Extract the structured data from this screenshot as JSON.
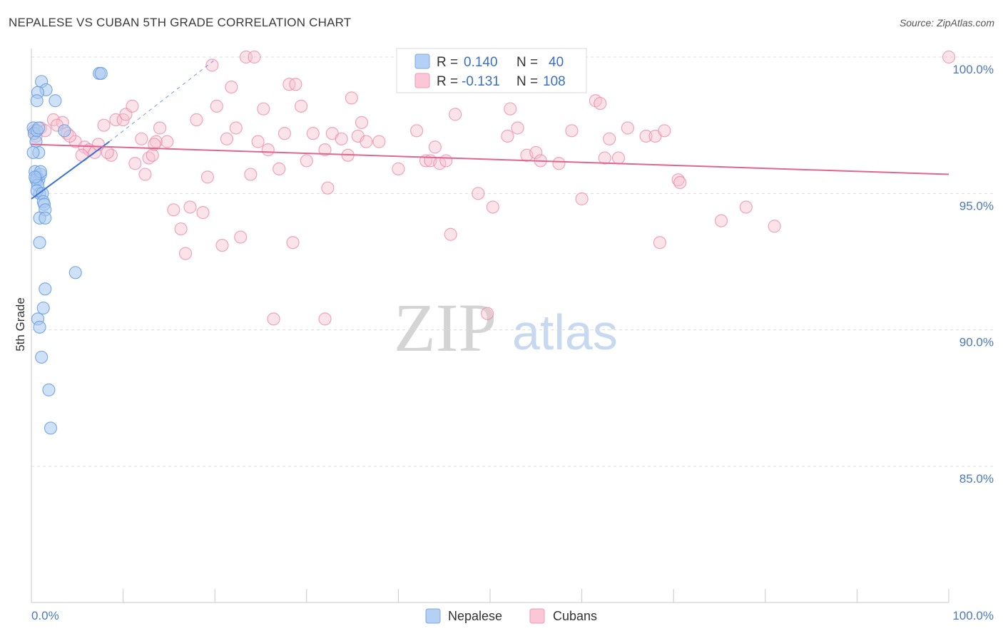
{
  "title": "NEPALESE VS CUBAN 5TH GRADE CORRELATION CHART",
  "source": "Source: ZipAtlas.com",
  "watermark": {
    "zip": "ZIP",
    "atlas": "atlas"
  },
  "colors": {
    "blue": "#6b9fe0",
    "blue_fill": "#a8c8f0",
    "blue_line": "#3a72d4",
    "pink": "#e98aa8",
    "pink_fill": "#f6c0d0",
    "pink_line": "#e0658f",
    "grid": "#dcdcdc",
    "axis_text": "#4a78c2"
  },
  "legend": {
    "rows": [
      {
        "r_label": "R =",
        "r_value": "0.140",
        "n_label": "N =",
        "n_value": "40"
      },
      {
        "r_label": "R =",
        "r_value": "-0.131",
        "n_label": "N =",
        "n_value": "108"
      }
    ]
  },
  "chart_data": {
    "type": "scatter",
    "title": "NEPALESE VS CUBAN 5TH GRADE CORRELATION CHART",
    "xlabel": "",
    "ylabel": "5th Grade",
    "xlim": [
      0,
      100
    ],
    "ylim": [
      80.5,
      100.9
    ],
    "x_tick_labels": [
      "0.0%",
      "100.0%"
    ],
    "y_ticks": [
      85,
      90,
      95,
      100
    ],
    "y_tick_labels": [
      "85.0%",
      "90.0%",
      "95.0%",
      "100.0%"
    ],
    "series": [
      {
        "name": "Nepalese",
        "r": 0.14,
        "n": 40,
        "trend": {
          "x0": 0,
          "y0": 94.8,
          "x1": 8.5,
          "y1": 96.9,
          "dash_to": [
            20,
            99.9
          ]
        },
        "points": [
          [
            0.2,
            97.4
          ],
          [
            0.3,
            97.2
          ],
          [
            0.5,
            96.9
          ],
          [
            0.6,
            97.3
          ],
          [
            0.8,
            97.4
          ],
          [
            0.4,
            95.8
          ],
          [
            0.6,
            95.6
          ],
          [
            0.8,
            95.5
          ],
          [
            1.0,
            95.7
          ],
          [
            0.5,
            95.5
          ],
          [
            0.7,
            95.3
          ],
          [
            0.9,
            95.0
          ],
          [
            0.6,
            95.1
          ],
          [
            1.2,
            95.0
          ],
          [
            1.3,
            94.7
          ],
          [
            1.4,
            94.6
          ],
          [
            1.5,
            94.4
          ],
          [
            0.9,
            94.1
          ],
          [
            1.5,
            94.1
          ],
          [
            0.9,
            93.2
          ],
          [
            1.1,
            99.1
          ],
          [
            1.6,
            98.8
          ],
          [
            0.7,
            98.7
          ],
          [
            0.6,
            98.4
          ],
          [
            2.6,
            98.4
          ],
          [
            3.6,
            97.3
          ],
          [
            0.8,
            96.5
          ],
          [
            0.2,
            96.5
          ],
          [
            7.4,
            99.4
          ],
          [
            7.6,
            99.4
          ],
          [
            4.8,
            92.1
          ],
          [
            1.5,
            91.5
          ],
          [
            1.3,
            90.8
          ],
          [
            0.7,
            90.4
          ],
          [
            0.9,
            90.1
          ],
          [
            1.1,
            89.0
          ],
          [
            1.9,
            87.8
          ],
          [
            2.1,
            86.4
          ],
          [
            1.0,
            95.8
          ],
          [
            0.4,
            95.6
          ]
        ]
      },
      {
        "name": "Cubans",
        "r": -0.131,
        "n": 108,
        "trend": {
          "x0": 0,
          "y0": 96.8,
          "x1": 100,
          "y1": 95.7
        },
        "points": [
          [
            0.3,
            97.3
          ],
          [
            0.5,
            97.1
          ],
          [
            1.0,
            97.4
          ],
          [
            1.5,
            97.3
          ],
          [
            2.4,
            97.7
          ],
          [
            3.4,
            97.6
          ],
          [
            2.8,
            97.5
          ],
          [
            3.9,
            97.2
          ],
          [
            4.8,
            96.9
          ],
          [
            5.8,
            96.7
          ],
          [
            6.3,
            96.6
          ],
          [
            5.5,
            96.4
          ],
          [
            6.9,
            96.5
          ],
          [
            7.3,
            96.8
          ],
          [
            7.9,
            97.5
          ],
          [
            8.7,
            96.4
          ],
          [
            9.2,
            97.7
          ],
          [
            10.0,
            97.7
          ],
          [
            10.3,
            97.9
          ],
          [
            11.0,
            98.2
          ],
          [
            11.3,
            96.1
          ],
          [
            12.0,
            97.0
          ],
          [
            12.4,
            95.7
          ],
          [
            12.8,
            96.3
          ],
          [
            13.2,
            96.4
          ],
          [
            13.6,
            96.9
          ],
          [
            14.0,
            97.4
          ],
          [
            14.8,
            96.9
          ],
          [
            15.5,
            94.4
          ],
          [
            16.3,
            93.7
          ],
          [
            16.8,
            92.8
          ],
          [
            17.3,
            94.5
          ],
          [
            18.0,
            97.7
          ],
          [
            18.7,
            94.3
          ],
          [
            19.2,
            95.6
          ],
          [
            19.7,
            99.7
          ],
          [
            20.2,
            98.2
          ],
          [
            20.8,
            93.1
          ],
          [
            21.3,
            97.0
          ],
          [
            21.8,
            98.9
          ],
          [
            22.3,
            97.4
          ],
          [
            22.8,
            93.4
          ],
          [
            23.4,
            100.0
          ],
          [
            23.9,
            95.7
          ],
          [
            24.3,
            100.0
          ],
          [
            24.7,
            96.9
          ],
          [
            25.3,
            98.1
          ],
          [
            25.8,
            96.6
          ],
          [
            26.4,
            90.4
          ],
          [
            27.0,
            95.9
          ],
          [
            27.6,
            97.2
          ],
          [
            28.1,
            99.0
          ],
          [
            28.5,
            93.2
          ],
          [
            28.8,
            99.0
          ],
          [
            29.4,
            98.2
          ],
          [
            30.0,
            96.2
          ],
          [
            30.7,
            97.2
          ],
          [
            32.0,
            96.6
          ],
          [
            32.3,
            95.2
          ],
          [
            32.8,
            97.2
          ],
          [
            33.8,
            97.0
          ],
          [
            34.5,
            96.4
          ],
          [
            34.9,
            98.5
          ],
          [
            35.6,
            97.1
          ],
          [
            36.0,
            97.6
          ],
          [
            36.5,
            96.9
          ],
          [
            37.9,
            96.9
          ],
          [
            40.0,
            95.9
          ],
          [
            42.0,
            97.3
          ],
          [
            43.0,
            96.2
          ],
          [
            43.5,
            96.2
          ],
          [
            44.0,
            96.7
          ],
          [
            44.5,
            96.1
          ],
          [
            45.2,
            96.2
          ],
          [
            45.7,
            93.5
          ],
          [
            46.2,
            97.9
          ],
          [
            48.7,
            95.0
          ],
          [
            49.7,
            90.6
          ],
          [
            50.3,
            94.5
          ],
          [
            51.9,
            97.1
          ],
          [
            52.2,
            98.1
          ],
          [
            53.0,
            97.4
          ],
          [
            54.0,
            96.4
          ],
          [
            55.0,
            96.5
          ],
          [
            55.5,
            96.2
          ],
          [
            57.5,
            96.1
          ],
          [
            58.9,
            97.3
          ],
          [
            60.0,
            94.8
          ],
          [
            61.5,
            98.4
          ],
          [
            62.0,
            98.3
          ],
          [
            62.5,
            96.3
          ],
          [
            63.0,
            97.0
          ],
          [
            64.0,
            96.3
          ],
          [
            65.0,
            97.4
          ],
          [
            67.0,
            97.1
          ],
          [
            68.0,
            97.1
          ],
          [
            68.5,
            93.2
          ],
          [
            69.0,
            97.3
          ],
          [
            70.5,
            95.5
          ],
          [
            70.7,
            95.4
          ],
          [
            75.2,
            94.0
          ],
          [
            77.9,
            94.5
          ],
          [
            81.0,
            93.8
          ],
          [
            100.0,
            100.0
          ],
          [
            32.0,
            90.4
          ],
          [
            8.3,
            96.5
          ],
          [
            4.2,
            97.1
          ],
          [
            13.4,
            96.8
          ]
        ]
      }
    ]
  },
  "bottom_legend": {
    "items": [
      "Nepalese",
      "Cubans"
    ]
  }
}
